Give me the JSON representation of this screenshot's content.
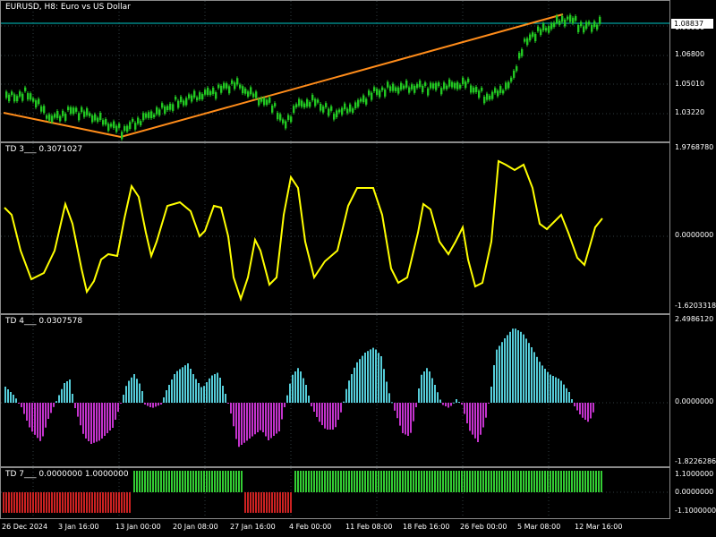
{
  "colors": {
    "background": "#000000",
    "grid": "#2f3b3f",
    "candle": "#22c822",
    "trendline": "#ff8c1a",
    "pricetarget": "#00c8c8",
    "td3": "#ffff00",
    "td4_pos": "#55ccd8",
    "td4_neg": "#c333cc",
    "td7_green": "#33cc33",
    "td7_red": "#cc2222"
  },
  "main_pane": {
    "title": "EURUSD, H8:  Euro vs US Dollar",
    "current_price": "1.08837",
    "price_partial": "1.08930",
    "ticks": [
      "1.06800",
      "1.05010",
      "1.03220"
    ]
  },
  "td3": {
    "label": "TD 3___  0.3071027",
    "ticks": [
      "1.9768780",
      "0.0000000",
      "-1.6203318"
    ]
  },
  "td4": {
    "label": "TD 4___  0.0307578",
    "ticks": [
      "2.4986120",
      "0.0000000",
      "-1.8226286"
    ]
  },
  "td7": {
    "label": "TD 7___  0.0000000  1.0000000",
    "ticks": [
      "1.1000000",
      "0.0000000",
      "-1.1000000"
    ]
  },
  "time_axis": [
    "26 Dec 2024",
    "3 Jan 16:00",
    "13 Jan 00:00",
    "20 Jan 08:00",
    "27 Jan 16:00",
    "4 Feb 00:00",
    "11 Feb 08:00",
    "18 Feb 16:00",
    "26 Feb 00:00",
    "5 Mar 08:00",
    "12 Mar 16:00"
  ]
}
